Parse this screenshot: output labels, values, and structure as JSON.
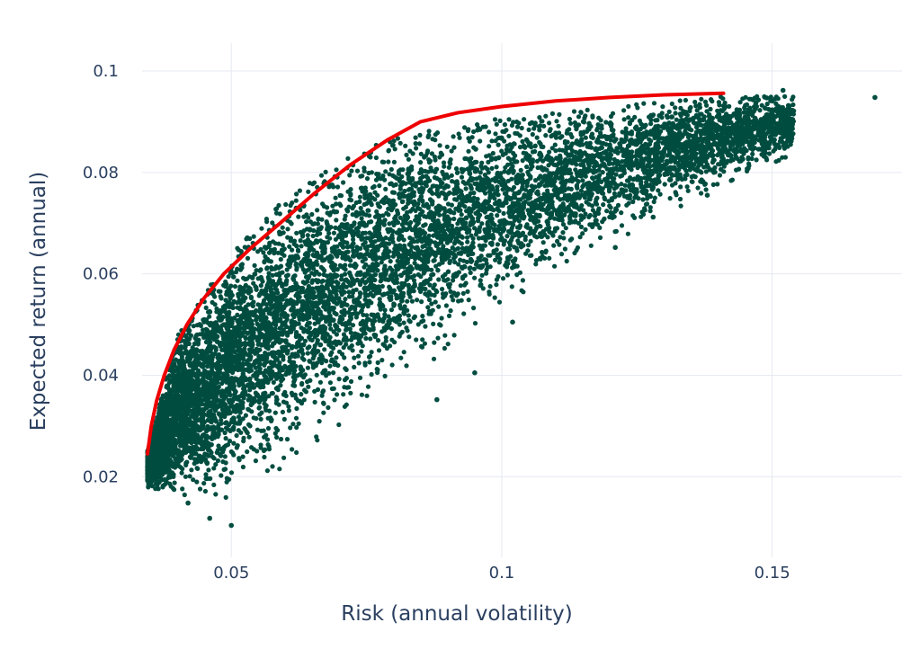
{
  "chart_data": {
    "type": "scatter",
    "title": "",
    "xlabel": "Risk (annual volatility)",
    "ylabel": "Expected return (annual)",
    "xlim": [
      0.0335,
      0.174
    ],
    "ylim": [
      0.0041,
      0.1055
    ],
    "grid": true,
    "legend": "none",
    "x_ticks": [
      {
        "value": 0.05,
        "label": "0.05"
      },
      {
        "value": 0.1,
        "label": "0.1"
      },
      {
        "value": 0.15,
        "label": "0.15"
      }
    ],
    "y_ticks": [
      {
        "value": 0.02,
        "label": "0.02"
      },
      {
        "value": 0.04,
        "label": "0.04"
      },
      {
        "value": 0.06,
        "label": "0.06"
      },
      {
        "value": 0.08,
        "label": "0.08"
      },
      {
        "value": 0.1,
        "label": "0.1"
      }
    ],
    "colors": {
      "points": "#004d40",
      "frontier": "#ee0000",
      "grid": "#e6e9f0",
      "text": "#2a3f5f"
    },
    "series": [
      {
        "type": "scatter",
        "cloud": {
          "n": 9000,
          "x_range": [
            0.0345,
            0.154
          ],
          "y_min_at_x": [
            [
              0.0345,
              0.018
            ],
            [
              0.045,
              0.013
            ],
            [
              0.06,
              0.022
            ],
            [
              0.08,
              0.037
            ],
            [
              0.1,
              0.053
            ],
            [
              0.12,
              0.066
            ],
            [
              0.14,
              0.077
            ],
            [
              0.155,
              0.084
            ]
          ],
          "y_max_at_x": [
            [
              0.0345,
              0.025
            ],
            [
              0.04,
              0.048
            ],
            [
              0.05,
              0.064
            ],
            [
              0.06,
              0.075
            ],
            [
              0.07,
              0.082
            ],
            [
              0.08,
              0.087
            ],
            [
              0.09,
              0.089
            ],
            [
              0.1,
              0.091
            ],
            [
              0.12,
              0.093
            ],
            [
              0.14,
              0.095
            ],
            [
              0.155,
              0.095
            ]
          ]
        },
        "outliers": [
          {
            "x": 0.169,
            "y": 0.0948
          },
          {
            "x": 0.152,
            "y": 0.0962
          },
          {
            "x": 0.153,
            "y": 0.0932
          },
          {
            "x": 0.149,
            "y": 0.0947
          },
          {
            "x": 0.046,
            "y": 0.0118
          },
          {
            "x": 0.05,
            "y": 0.0104
          },
          {
            "x": 0.042,
            "y": 0.0148
          },
          {
            "x": 0.088,
            "y": 0.0352
          },
          {
            "x": 0.095,
            "y": 0.0405
          },
          {
            "x": 0.102,
            "y": 0.0505
          },
          {
            "x": 0.121,
            "y": 0.0652
          },
          {
            "x": 0.128,
            "y": 0.0712
          },
          {
            "x": 0.138,
            "y": 0.0755
          },
          {
            "x": 0.145,
            "y": 0.0862
          },
          {
            "x": 0.148,
            "y": 0.0895
          }
        ]
      },
      {
        "type": "line",
        "points": [
          [
            0.0345,
            0.0245
          ],
          [
            0.0352,
            0.03
          ],
          [
            0.0362,
            0.035
          ],
          [
            0.0376,
            0.04
          ],
          [
            0.0394,
            0.045
          ],
          [
            0.0418,
            0.05
          ],
          [
            0.0448,
            0.055
          ],
          [
            0.0486,
            0.06
          ],
          [
            0.0535,
            0.065
          ],
          [
            0.059,
            0.07
          ],
          [
            0.0655,
            0.076
          ],
          [
            0.072,
            0.0815
          ],
          [
            0.079,
            0.0865
          ],
          [
            0.085,
            0.09
          ],
          [
            0.092,
            0.0918
          ],
          [
            0.1,
            0.093
          ],
          [
            0.11,
            0.0941
          ],
          [
            0.12,
            0.0948
          ],
          [
            0.13,
            0.0953
          ],
          [
            0.141,
            0.0956
          ]
        ]
      }
    ]
  }
}
